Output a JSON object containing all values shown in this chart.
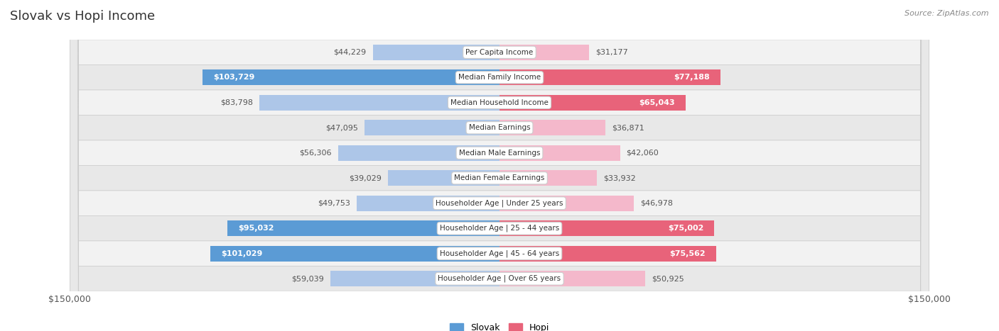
{
  "title": "Slovak vs Hopi Income",
  "source": "Source: ZipAtlas.com",
  "categories": [
    "Per Capita Income",
    "Median Family Income",
    "Median Household Income",
    "Median Earnings",
    "Median Male Earnings",
    "Median Female Earnings",
    "Householder Age | Under 25 years",
    "Householder Age | 25 - 44 years",
    "Householder Age | 45 - 64 years",
    "Householder Age | Over 65 years"
  ],
  "slovak_values": [
    44229,
    103729,
    83798,
    47095,
    56306,
    39029,
    49753,
    95032,
    101029,
    59039
  ],
  "hopi_values": [
    31177,
    77188,
    65043,
    36871,
    42060,
    33932,
    46978,
    75002,
    75562,
    50925
  ],
  "slovak_labels": [
    "$44,229",
    "$103,729",
    "$83,798",
    "$47,095",
    "$56,306",
    "$39,029",
    "$49,753",
    "$95,032",
    "$101,029",
    "$59,039"
  ],
  "hopi_labels": [
    "$31,177",
    "$77,188",
    "$65,043",
    "$36,871",
    "$42,060",
    "$33,932",
    "$46,978",
    "$75,002",
    "$75,562",
    "$50,925"
  ],
  "max_value": 150000,
  "slovak_color_light": "#adc6e8",
  "slovak_color_dark": "#5b9bd5",
  "hopi_color_light": "#f4b8cb",
  "hopi_color_dark": "#e8637a",
  "row_odd_color": "#f2f2f2",
  "row_even_color": "#e8e8e8",
  "label_white": "#ffffff",
  "label_dark": "#555555",
  "axis_label": "$150,000",
  "bar_height": 0.62,
  "figsize": [
    14.06,
    4.67
  ],
  "dpi": 100,
  "legend_slovak": "Slovak",
  "legend_hopi": "Hopi",
  "dark_threshold_slovak": 85000,
  "dark_threshold_hopi": 65000
}
